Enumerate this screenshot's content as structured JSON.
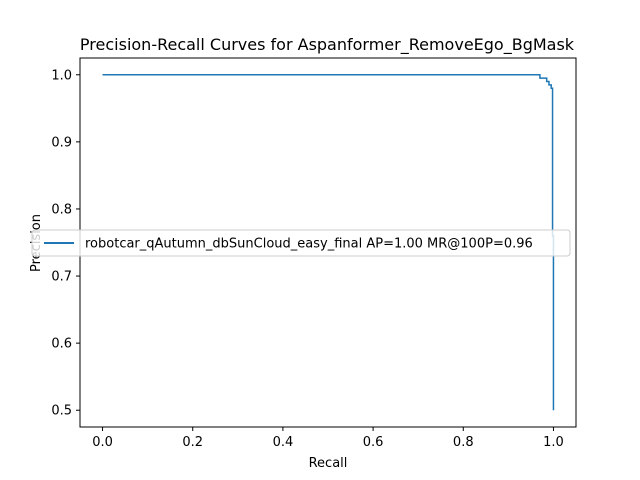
{
  "chart_data": {
    "type": "line",
    "title": "Precision-Recall Curves for Aspanformer_RemoveEgo_BgMask",
    "xlabel": "Recall",
    "ylabel": "Precision",
    "xlim": [
      -0.05,
      1.05
    ],
    "ylim": [
      0.475,
      1.025
    ],
    "xticks": [
      0.0,
      0.2,
      0.4,
      0.6,
      0.8,
      1.0
    ],
    "xtick_labels": [
      "0.0",
      "0.2",
      "0.4",
      "0.6",
      "0.8",
      "1.0"
    ],
    "yticks": [
      0.5,
      0.6,
      0.7,
      0.8,
      0.9,
      1.0
    ],
    "ytick_labels": [
      "0.5",
      "0.6",
      "0.7",
      "0.8",
      "0.9",
      "1.0"
    ],
    "grid": false,
    "legend_position": "center-left",
    "series": [
      {
        "name": "robotcar_qAutumn_dbSunCloud_easy_final AP=1.00 MR@100P=0.96",
        "color": "#1f77b4",
        "x": [
          0.0,
          0.96,
          0.97,
          0.97,
          0.985,
          0.985,
          0.99,
          0.99,
          0.995,
          0.995,
          0.998,
          0.998,
          1.0,
          1.0
        ],
        "y": [
          1.0,
          1.0,
          1.0,
          0.995,
          0.995,
          0.99,
          0.99,
          0.985,
          0.985,
          0.98,
          0.98,
          0.76,
          0.76,
          0.5
        ]
      }
    ]
  }
}
